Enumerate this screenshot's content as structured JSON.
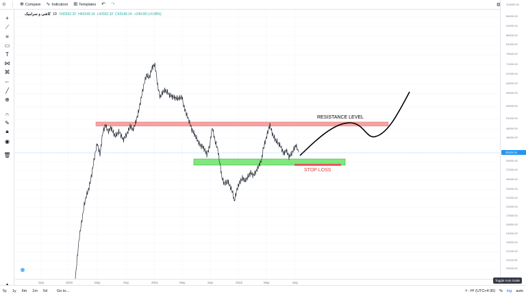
{
  "toolbar": {
    "symbol_initial": "D",
    "compare_label": "Compare",
    "indicators_label": "Indicators",
    "templates_label": "Templates"
  },
  "legend": {
    "symbol": "کاشی و سرامیک",
    "interval": "1D",
    "open": "O42932.32",
    "high": "H43149.14",
    "low": "L42932.32",
    "close": "C43149.14",
    "change": "+249.68 (+0.58%)"
  },
  "price_axis": {
    "labels": [
      "104000.00",
      "96000.00",
      "91000.00",
      "86000.00",
      "81000.00",
      "75000.00",
      "71000.00",
      "67000.00",
      "63000.00",
      "59000.00",
      "55000.00",
      "51000.00",
      "48000.00",
      "45000.00",
      "39000.00",
      "37000.00",
      "35000.00",
      "33000.00",
      "31000.00",
      "29000.00",
      "27800.00",
      "26500.00",
      "24900.00",
      "23500.00",
      "22100.00",
      "21100.00",
      "20000.00"
    ],
    "current_price": "43149.14"
  },
  "time_axis": {
    "labels": [
      "Sep",
      "2020",
      "May",
      "Sep",
      "2021",
      "May",
      "Sep",
      "2022",
      "May",
      "Sep"
    ]
  },
  "annotations": {
    "resistance": "RESISTANCE LEVEL",
    "stop_loss": "STOP LOSS"
  },
  "bottom_bar": {
    "ranges": [
      "5y",
      "1y",
      "6m",
      "1m",
      "5d"
    ],
    "goto": "Go to...",
    "clock": "۲۰:۳۴ (UTC+4:30)",
    "percent": "%",
    "log": "log",
    "auto": "auto",
    "tooltip": "Toggle Auto Scale"
  },
  "colors": {
    "resistance_fill": "#f4a3a3",
    "support_fill": "#7ee87e",
    "stop_loss_fill": "#e05c5c",
    "current_price_tag": "#2196f3",
    "stop_loss_text": "#e53935"
  }
}
